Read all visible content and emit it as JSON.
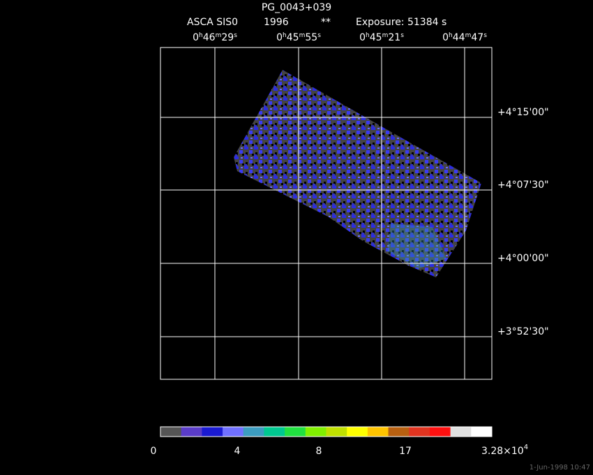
{
  "header": {
    "title": "PG_0043+039",
    "instrument": "ASCA SIS0",
    "year": "1996",
    "flag": "**",
    "exposure": "Exposure: 51384 s"
  },
  "ra_labels": [
    [
      "0",
      "h",
      "46",
      "m",
      "29",
      "s"
    ],
    [
      "0",
      "h",
      "45",
      "m",
      "55",
      "s"
    ],
    [
      "0",
      "h",
      "45",
      "m",
      "21",
      "s"
    ],
    [
      "0",
      "h",
      "44",
      "m",
      "47",
      "s"
    ]
  ],
  "dec_labels": [
    "+4°15'00\"",
    "+4°07'30\"",
    "+4°00'00\"",
    "+3°52'30\""
  ],
  "colorbar": {
    "colors": [
      "#555555",
      "#5a3cc8",
      "#1a1ad2",
      "#7070ff",
      "#3c9cc0",
      "#00c890",
      "#20e040",
      "#80f000",
      "#c0e000",
      "#ffff00",
      "#ffc400",
      "#b86010",
      "#e03420",
      "#ff1010",
      "#e0e0e0",
      "#ffffff"
    ],
    "labels": [
      "0",
      "4",
      "8",
      "17"
    ],
    "max_label": [
      "3.28×10",
      "4"
    ]
  },
  "footer": "1-Jun-1998 10:47"
}
